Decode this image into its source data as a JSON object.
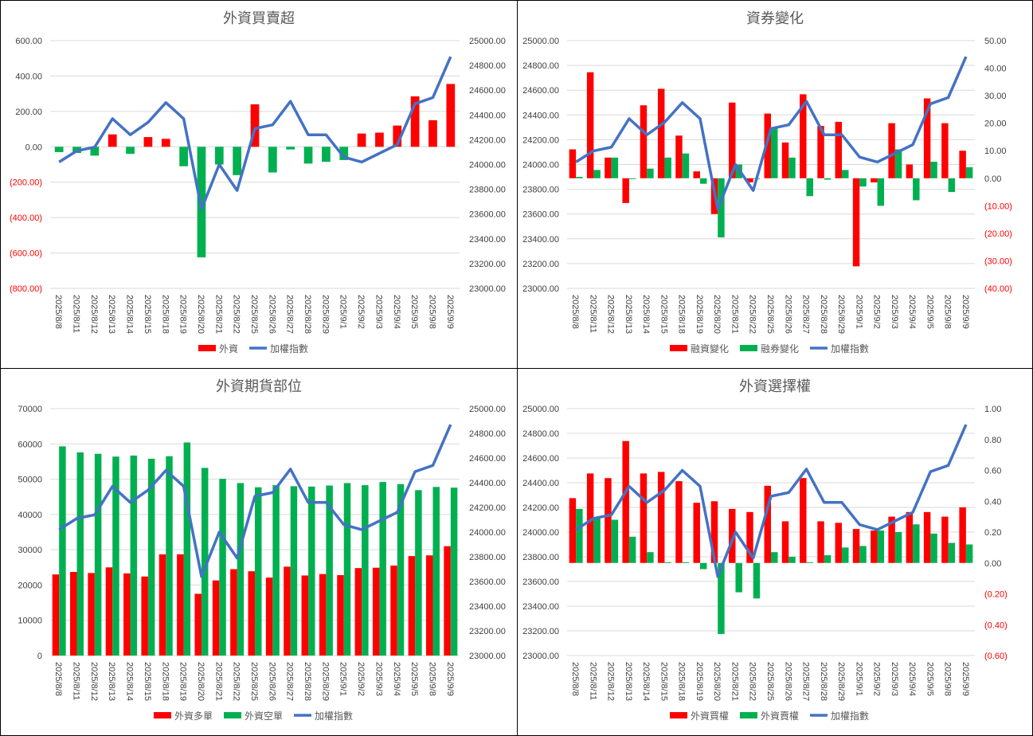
{
  "colors": {
    "red": "#ff0000",
    "green": "#00b050",
    "blue": "#4472c4"
  },
  "chart_data": [
    {
      "id": "foreign-net",
      "type": "bar",
      "title": "外資買賣超",
      "x": [
        "2025/8/8",
        "2025/8/11",
        "2025/8/12",
        "2025/8/13",
        "2025/8/14",
        "2025/8/15",
        "2025/8/18",
        "2025/8/19",
        "2025/8/20",
        "2025/8/21",
        "2025/8/22",
        "2025/8/25",
        "2025/8/26",
        "2025/8/27",
        "2025/8/28",
        "2025/8/29",
        "2025/9/1",
        "2025/9/2",
        "2025/9/3",
        "2025/9/4",
        "2025/9/5",
        "2025/9/8",
        "2025/9/9"
      ],
      "left_axis": {
        "min": -800,
        "max": 600,
        "step": 200,
        "labels": [
          "(800.00)",
          "(600.00)",
          "(400.00)",
          "(200.00)",
          "0.00",
          "200.00",
          "400.00",
          "600.00"
        ]
      },
      "right_axis": {
        "min": 23000,
        "max": 25000,
        "step": 200,
        "labels": [
          "23000.00",
          "23200.00",
          "23400.00",
          "23600.00",
          "23800.00",
          "24000.00",
          "24200.00",
          "24400.00",
          "24600.00",
          "24800.00",
          "25000.00"
        ]
      },
      "series": [
        {
          "name": "外資",
          "kind": "bar",
          "axis": "left",
          "color": "#ff0000",
          "neg_color": "#00b050",
          "values": [
            -30,
            -35,
            -50,
            70,
            -40,
            55,
            45,
            -110,
            -625,
            -100,
            -160,
            240,
            -145,
            -15,
            -95,
            -85,
            -75,
            75,
            80,
            120,
            285,
            150,
            355
          ]
        }
      ],
      "line": {
        "name": "加權指數",
        "axis": "right",
        "color": "#4472c4",
        "values": [
          24020,
          24110,
          24140,
          24370,
          24240,
          24340,
          24500,
          24370,
          23640,
          24000,
          23790,
          24290,
          24320,
          24510,
          24240,
          24240,
          24060,
          24020,
          24090,
          24160,
          24490,
          24540,
          24870
        ]
      }
    },
    {
      "id": "margin-short",
      "type": "bar",
      "title": "資券變化",
      "x": [
        "2025/8/8",
        "2025/8/11",
        "2025/8/12",
        "2025/8/13",
        "2025/8/14",
        "2025/8/15",
        "2025/8/18",
        "2025/8/19",
        "2025/8/20",
        "2025/8/21",
        "2025/8/22",
        "2025/8/25",
        "2025/8/26",
        "2025/8/27",
        "2025/8/28",
        "2025/8/29",
        "2025/9/1",
        "2025/9/2",
        "2025/9/3",
        "2025/9/4",
        "2025/9/5",
        "2025/9/8",
        "2025/9/9"
      ],
      "left_axis": {
        "min": 23000,
        "max": 25000,
        "step": 200,
        "labels": [
          "23000.00",
          "23200.00",
          "23400.00",
          "23600.00",
          "23800.00",
          "24000.00",
          "24200.00",
          "24400.00",
          "24600.00",
          "24800.00",
          "25000.00"
        ]
      },
      "right_axis": {
        "min": -40,
        "max": 50,
        "step": 10,
        "labels": [
          "(40.00)",
          "(30.00)",
          "(20.00)",
          "(10.00)",
          "0.00",
          "10.00",
          "20.00",
          "30.00",
          "40.00",
          "50.00"
        ]
      },
      "series": [
        {
          "name": "融資變化",
          "kind": "bar",
          "axis": "right",
          "color": "#ff0000",
          "values": [
            10.5,
            38.5,
            7.5,
            -9,
            26.5,
            32.5,
            15.5,
            2.5,
            -13,
            27.5,
            -1.5,
            23.5,
            13,
            30.5,
            19,
            20.5,
            -32,
            -1.5,
            20,
            5,
            29,
            20,
            10
          ]
        },
        {
          "name": "融券變化",
          "kind": "bar",
          "axis": "right",
          "color": "#00b050",
          "values": [
            0.5,
            3,
            7.5,
            0,
            3.5,
            7.5,
            9,
            -2,
            -21.5,
            5,
            0,
            18.5,
            7.5,
            -6.5,
            -0.5,
            3,
            -3,
            -10,
            10.5,
            -8,
            6,
            -5,
            4
          ]
        }
      ],
      "line": {
        "name": "加權指數",
        "axis": "left",
        "color": "#4472c4",
        "values": [
          24020,
          24110,
          24140,
          24370,
          24240,
          24340,
          24500,
          24370,
          23640,
          24000,
          23790,
          24290,
          24320,
          24510,
          24240,
          24240,
          24060,
          24020,
          24090,
          24160,
          24490,
          24540,
          24870
        ]
      }
    },
    {
      "id": "futures",
      "type": "bar",
      "title": "外資期貨部位",
      "x": [
        "2025/8/8",
        "2025/8/11",
        "2025/8/12",
        "2025/8/13",
        "2025/8/14",
        "2025/8/15",
        "2025/8/18",
        "2025/8/19",
        "2025/8/20",
        "2025/8/21",
        "2025/8/22",
        "2025/8/25",
        "2025/8/26",
        "2025/8/27",
        "2025/8/28",
        "2025/8/29",
        "2025/9/1",
        "2025/9/2",
        "2025/9/3",
        "2025/9/4",
        "2025/9/5",
        "2025/9/8",
        "2025/9/9"
      ],
      "left_axis": {
        "min": 0,
        "max": 70000,
        "step": 10000,
        "labels": [
          "0",
          "10000",
          "20000",
          "30000",
          "40000",
          "50000",
          "60000",
          "70000"
        ]
      },
      "right_axis": {
        "min": 23000,
        "max": 25000,
        "step": 200,
        "labels": [
          "23000.00",
          "23200.00",
          "23400.00",
          "23600.00",
          "23800.00",
          "24000.00",
          "24200.00",
          "24400.00",
          "24600.00",
          "24800.00",
          "25000.00"
        ]
      },
      "series": [
        {
          "name": "外資多單",
          "kind": "bar",
          "axis": "left",
          "color": "#ff0000",
          "values": [
            23000,
            23700,
            23400,
            25000,
            23300,
            22400,
            28700,
            28700,
            17500,
            21300,
            24500,
            23900,
            22100,
            25200,
            22700,
            23100,
            22800,
            24800,
            24900,
            25500,
            28200,
            28400,
            31000
          ]
        },
        {
          "name": "外資空單",
          "kind": "bar",
          "axis": "left",
          "color": "#00b050",
          "values": [
            59300,
            57600,
            57200,
            56400,
            56700,
            55800,
            56500,
            60400,
            53200,
            50100,
            48900,
            47700,
            48300,
            48000,
            47900,
            48200,
            48900,
            48300,
            49200,
            48600,
            46900,
            47800,
            47600
          ]
        }
      ],
      "line": {
        "name": "加權指數",
        "axis": "right",
        "color": "#4472c4",
        "values": [
          24020,
          24110,
          24140,
          24370,
          24240,
          24340,
          24500,
          24370,
          23640,
          24000,
          23790,
          24290,
          24320,
          24510,
          24240,
          24240,
          24060,
          24020,
          24090,
          24160,
          24490,
          24540,
          24870
        ]
      }
    },
    {
      "id": "options",
      "type": "bar",
      "title": "外資選擇權",
      "x": [
        "2025/8/8",
        "2025/8/11",
        "2025/8/12",
        "2025/8/13",
        "2025/8/14",
        "2025/8/15",
        "2025/8/18",
        "2025/8/19",
        "2025/8/20",
        "2025/8/21",
        "2025/8/22",
        "2025/8/25",
        "2025/8/26",
        "2025/8/27",
        "2025/8/28",
        "2025/8/29",
        "2025/9/1",
        "2025/9/2",
        "2025/9/3",
        "2025/9/4",
        "2025/9/5",
        "2025/9/8",
        "2025/9/9"
      ],
      "left_axis": {
        "min": 23000,
        "max": 25000,
        "step": 200,
        "labels": [
          "23000.00",
          "23200.00",
          "23400.00",
          "23600.00",
          "23800.00",
          "24000.00",
          "24200.00",
          "24400.00",
          "24600.00",
          "24800.00",
          "25000.00"
        ]
      },
      "right_axis": {
        "min": -0.6,
        "max": 1.0,
        "step": 0.2,
        "labels": [
          "(0.60)",
          "(0.40)",
          "(0.20)",
          "0.00",
          "0.20",
          "0.40",
          "0.60",
          "0.80",
          "1.00"
        ]
      },
      "series": [
        {
          "name": "外資買權",
          "kind": "bar",
          "axis": "right",
          "color": "#ff0000",
          "values": [
            0.42,
            0.58,
            0.55,
            0.79,
            0.58,
            0.59,
            0.53,
            0.39,
            0.4,
            0.35,
            0.33,
            0.5,
            0.27,
            0.55,
            0.27,
            0.26,
            0.22,
            0.21,
            0.3,
            0.33,
            0.33,
            0.3,
            0.36
          ]
        },
        {
          "name": "外資賣權",
          "kind": "bar",
          "axis": "right",
          "color": "#00b050",
          "values": [
            0.35,
            0.29,
            0.28,
            0.17,
            0.07,
            0.005,
            0.005,
            -0.04,
            -0.46,
            -0.19,
            -0.23,
            0.07,
            0.04,
            0.005,
            0.05,
            0.1,
            0.11,
            0.21,
            0.2,
            0.25,
            0.19,
            0.13,
            0.12
          ]
        }
      ],
      "line": {
        "name": "加權指數",
        "axis": "left",
        "color": "#4472c4",
        "values": [
          24020,
          24110,
          24140,
          24370,
          24240,
          24340,
          24500,
          24370,
          23640,
          24000,
          23790,
          24290,
          24320,
          24510,
          24240,
          24240,
          24060,
          24020,
          24090,
          24160,
          24490,
          24540,
          24870
        ]
      }
    }
  ]
}
